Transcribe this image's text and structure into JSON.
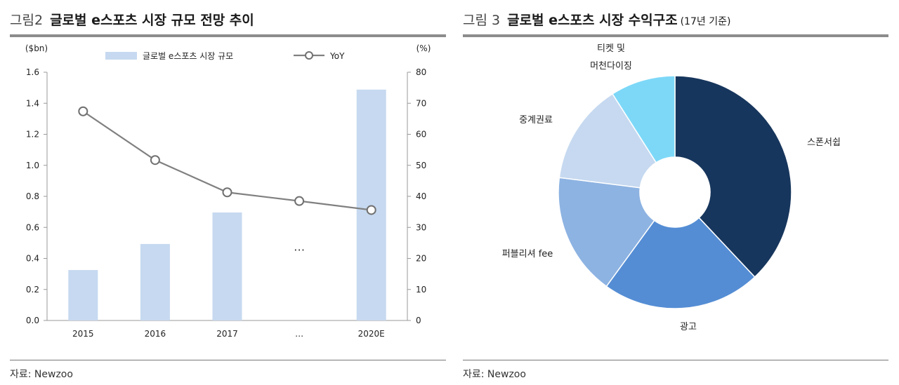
{
  "left": {
    "figure_number": "그림2",
    "figure_title": "글로벌 e스포츠 시장 규모 전망 추이",
    "source": "자료: Newzoo",
    "chart_data": {
      "type": "bar",
      "categories": [
        "2015",
        "2016",
        "2017",
        "…",
        "2020E"
      ],
      "y_unit_left": "($bn)",
      "y_unit_right": "(%)",
      "ylim_left": [
        0,
        1.6
      ],
      "ylim_right": [
        0,
        80
      ],
      "y_ticks_left": [
        "0.0",
        "0.2",
        "0.4",
        "0.6",
        "0.8",
        "1.0",
        "1.2",
        "1.4",
        "1.6"
      ],
      "y_ticks_right": [
        "0",
        "10",
        "20",
        "30",
        "40",
        "50",
        "60",
        "70",
        "80"
      ],
      "legend": [
        {
          "label": "글로벌 e스포츠 시장 규모",
          "kind": "bar",
          "color": "#c6d9f0"
        },
        {
          "label": "YoY",
          "kind": "line",
          "color": "#808080"
        }
      ],
      "legend_position": "top",
      "ellipsis_mark": "…",
      "series": [
        {
          "name": "글로벌 e스포츠 시장 규모",
          "type": "bar",
          "axis": "left",
          "values": [
            0.325,
            0.493,
            0.696,
            null,
            1.488
          ],
          "color": "#c6d9f0"
        },
        {
          "name": "YoY",
          "type": "line",
          "axis": "right",
          "values": [
            67.4,
            51.7,
            41.3,
            38.5,
            35.6
          ],
          "color": "#808080"
        }
      ]
    }
  },
  "right": {
    "figure_number": "그림 3",
    "figure_title": "글로벌 e스포츠 시장 수익구조",
    "figure_note": "(17년 기준)",
    "source": "자료: Newzoo",
    "chart_data": {
      "type": "pie",
      "donut": true,
      "slices": [
        {
          "label": "스폰서쉽",
          "value": 38.0,
          "color": "#17365d"
        },
        {
          "label": "광고",
          "value": 22.0,
          "color": "#548dd4"
        },
        {
          "label": "퍼블리셔 fee",
          "value": 17.0,
          "color": "#8db3e2"
        },
        {
          "label": "중계권료",
          "value": 14.0,
          "color": "#c6d9f0"
        },
        {
          "label": "티켓 및\n머천다이징",
          "value": 9.0,
          "color": "#7dd8f8"
        }
      ]
    }
  }
}
